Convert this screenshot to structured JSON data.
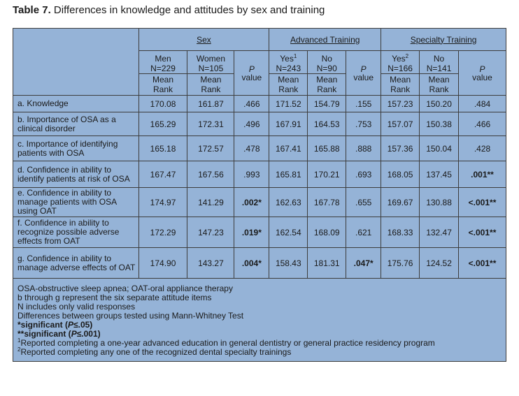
{
  "title": {
    "number": "Table 7.",
    "text": " Differences in knowledge and attitudes by sex and training"
  },
  "groups": {
    "sex": "Sex",
    "advanced": "Advanced Training",
    "specialty": "Specialty Training"
  },
  "columns": {
    "men": "Men",
    "men_n": "N=229",
    "women": "Women",
    "women_n": "N=105",
    "adv_yes": "Yes",
    "adv_yes_sup": "1",
    "adv_yes_n": "N=243",
    "adv_no": "No",
    "adv_no_n": "N=90",
    "spec_yes": "Yes",
    "spec_yes_sup": "2",
    "spec_yes_n": "N=166",
    "spec_no": "No",
    "spec_no_n": "N=141",
    "p": "P",
    "value": "value",
    "mean": "Mean",
    "rank": "Rank"
  },
  "rows": [
    {
      "label": "a. Knowledge",
      "men": "170.08",
      "women": "161.87",
      "p1": ".466",
      "adv_yes": "171.52",
      "adv_no": "154.79",
      "p2": ".155",
      "spec_yes": "157.23",
      "spec_no": "150.20",
      "p3": ".484"
    },
    {
      "label": "b. Importance of OSA as a clinical disorder",
      "men": "165.29",
      "women": "172.31",
      "p1": ".496",
      "adv_yes": "167.91",
      "adv_no": "164.53",
      "p2": ".753",
      "spec_yes": "157.07",
      "spec_no": "150.38",
      "p3": ".466"
    },
    {
      "label": "c. Importance of identifying patients with OSA",
      "men": "165.18",
      "women": "172.57",
      "p1": ".478",
      "adv_yes": "167.41",
      "adv_no": "165.88",
      "p2": ".888",
      "spec_yes": "157.36",
      "spec_no": "150.04",
      "p3": ".428"
    },
    {
      "label": "d. Confidence in ability to identify patients at risk of OSA",
      "men": "167.47",
      "women": "167.56",
      "p1": ".993",
      "adv_yes": "165.81",
      "adv_no": "170.21",
      "p2": ".693",
      "spec_yes": "168.05",
      "spec_no": "137.45",
      "p3": ".001**"
    },
    {
      "label": "e. Confidence in ability to manage patients with OSA using OAT",
      "men": "174.97",
      "women": "141.29",
      "p1": ".002*",
      "adv_yes": "162.63",
      "adv_no": "167.78",
      "p2": ".655",
      "spec_yes": "169.67",
      "spec_no": "130.88",
      "p3": "<.001**"
    },
    {
      "label": "f. Confidence in ability to recognize possible adverse effects from OAT",
      "men": "172.29",
      "women": "147.23",
      "p1": ".019*",
      "adv_yes": "162.54",
      "adv_no": "168.09",
      "p2": ".621",
      "spec_yes": "168.33",
      "spec_no": "132.47",
      "p3": "<.001**"
    },
    {
      "label": "g. Confidence in ability to manage adverse effects of OAT",
      "men": "174.90",
      "women": "143.27",
      "p1": ".004*",
      "adv_yes": "158.43",
      "adv_no": "181.31",
      "p2": ".047*",
      "spec_yes": "175.76",
      "spec_no": "124.52",
      "p3": "<.001**"
    }
  ],
  "footnotes": {
    "l1": "OSA-obstructive sleep apnea; OAT-oral appliance therapy",
    "l2": "b through g represent the six separate attitude items",
    "l3": "N includes only valid responses",
    "l4": "Differences between groups tested using Mann-Whitney Test",
    "l5_mark": "*",
    "l5_text": "significant (",
    "l5_p": "P",
    "l5_rest": "≤.05)",
    "l6_mark": "**",
    "l6_text": "significant (",
    "l6_p": "P",
    "l6_rest": "≤.001)",
    "l7_sup": "1",
    "l7": "Reported completing a one-year advanced education in general dentistry or general practice residency program",
    "l8_sup": "2",
    "l8": "Reported completing any one of the recognized dental specialty trainings"
  }
}
